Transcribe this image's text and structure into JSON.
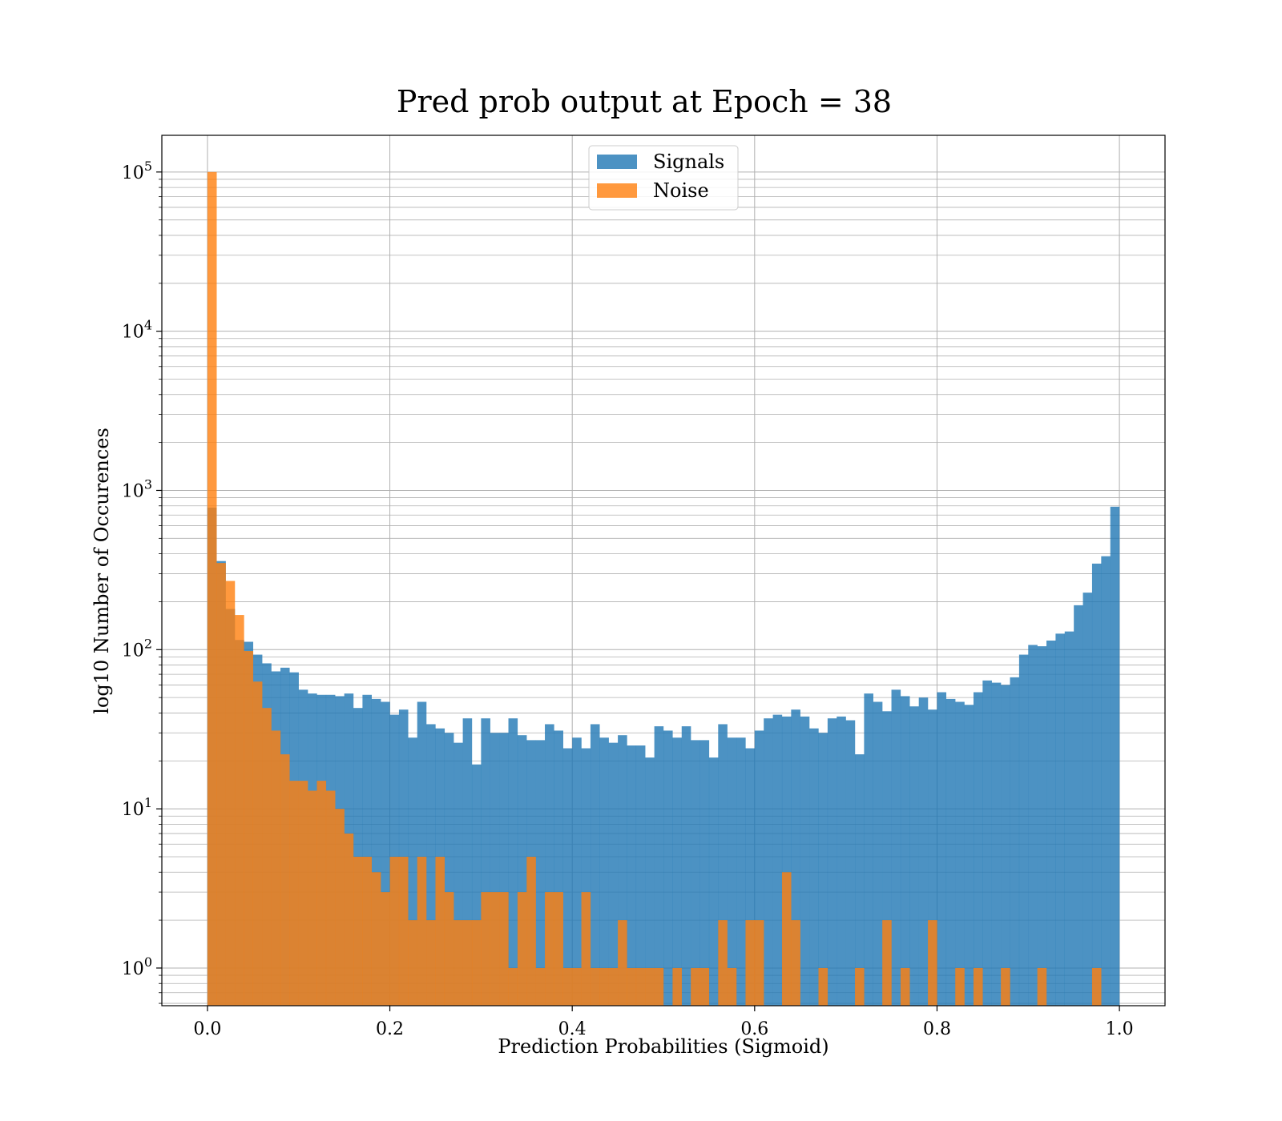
{
  "chart_data": {
    "type": "bar",
    "title": "Pred prob output at Epoch = 38",
    "xlabel": "Prediction Probabilities (Sigmoid)",
    "ylabel": "log10 Number of Occurences",
    "xlim": [
      -0.05,
      1.05
    ],
    "ylim": [
      0.58,
      170000
    ],
    "yscale": "log",
    "grid": true,
    "legend_position": "top-center",
    "bins": {
      "start": 0.0,
      "end": 1.0,
      "count": 100
    },
    "x_ticks": [
      "0.0",
      "0.2",
      "0.4",
      "0.6",
      "0.8",
      "1.0"
    ],
    "x_tick_values": [
      0.0,
      0.2,
      0.4,
      0.6,
      0.8,
      1.0
    ],
    "y_ticks": [
      {
        "base": "10",
        "exp": "0",
        "value": 1
      },
      {
        "base": "10",
        "exp": "1",
        "value": 10
      },
      {
        "base": "10",
        "exp": "2",
        "value": 100
      },
      {
        "base": "10",
        "exp": "3",
        "value": 1000
      },
      {
        "base": "10",
        "exp": "4",
        "value": 10000
      },
      {
        "base": "10",
        "exp": "5",
        "value": 100000
      }
    ],
    "series": [
      {
        "name": "Signals",
        "color": "#1f77b4",
        "values": [
          780,
          360,
          180,
          115,
          112,
          93,
          82,
          73,
          77,
          72,
          56,
          53,
          52,
          52,
          51,
          53,
          43,
          52,
          49,
          47,
          39,
          42,
          28,
          47,
          34,
          32,
          30,
          26,
          37,
          19,
          37,
          30,
          30,
          37,
          29,
          27,
          27,
          34,
          31,
          24,
          28,
          24,
          34,
          28,
          26,
          29,
          25,
          25,
          21,
          33,
          31,
          28,
          33,
          27,
          27,
          21,
          34,
          28,
          28,
          24,
          31,
          37,
          39,
          38,
          42,
          38,
          32,
          30,
          37,
          38,
          36,
          22,
          53,
          47,
          41,
          56,
          51,
          44,
          50,
          42,
          54,
          49,
          47,
          45,
          54,
          64,
          62,
          60,
          67,
          93,
          107,
          105,
          114,
          126,
          130,
          190,
          228,
          347,
          386,
          790
        ]
      },
      {
        "name": "Noise",
        "color": "#ff7f0e",
        "values": [
          100000,
          350,
          270,
          165,
          98,
          63,
          43,
          31,
          22,
          15,
          15,
          13,
          15,
          13,
          10,
          7,
          5,
          5,
          4,
          3,
          5,
          5,
          2,
          5,
          2,
          5,
          3,
          2,
          2,
          2,
          3,
          3,
          3,
          1,
          3,
          5,
          1,
          3,
          3,
          1,
          1,
          3,
          1,
          1,
          1,
          2,
          1,
          1,
          1,
          1,
          0,
          1,
          0,
          1,
          1,
          0,
          2,
          1,
          0,
          2,
          2,
          0,
          0,
          4,
          2,
          0,
          0,
          1,
          0,
          0,
          0,
          1,
          0,
          0,
          2,
          0,
          1,
          0,
          0,
          2,
          0,
          0,
          1,
          0,
          1,
          0,
          0,
          1,
          0,
          0,
          0,
          1,
          0,
          0,
          0,
          0,
          0,
          1,
          0,
          0
        ]
      }
    ]
  }
}
